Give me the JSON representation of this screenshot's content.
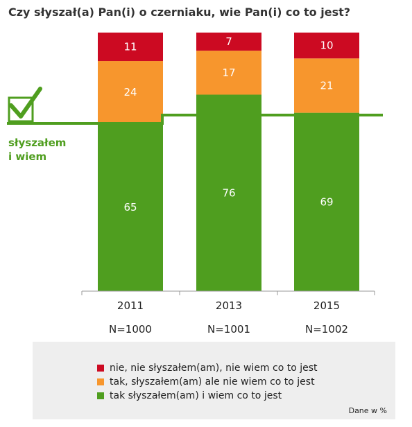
{
  "title": "Czy słyszał(a) Pan(i) o czerniaku, wie Pan(i) co to jest?",
  "annotation": "słyszałem i wiem",
  "annotation_lines": [
    "słyszałem",
    "i wiem"
  ],
  "note": "Dane w %",
  "colors": {
    "red": "#cc0a22",
    "orange": "#f7962d",
    "green": "#4f9e1f"
  },
  "chart_data": {
    "type": "bar",
    "stacked": true,
    "categories": [
      "2011",
      "2013",
      "2015"
    ],
    "sample_sizes": [
      "N=1000",
      "N=1001",
      "N=1002"
    ],
    "ylim": [
      0,
      100
    ],
    "series": [
      {
        "name": "tak słyszałem(am) i wiem co to jest",
        "color": "#4f9e1f",
        "values": [
          65,
          76,
          69
        ]
      },
      {
        "name": "tak, słyszałem(am) ale nie wiem co to jest",
        "color": "#f7962d",
        "values": [
          24,
          17,
          21
        ]
      },
      {
        "name": "nie, nie słyszałem(am), nie wiem co to jest",
        "color": "#cc0a22",
        "values": [
          11,
          7,
          10
        ]
      }
    ],
    "legend_order": [
      2,
      1,
      0
    ],
    "legend_position": "bottom"
  }
}
